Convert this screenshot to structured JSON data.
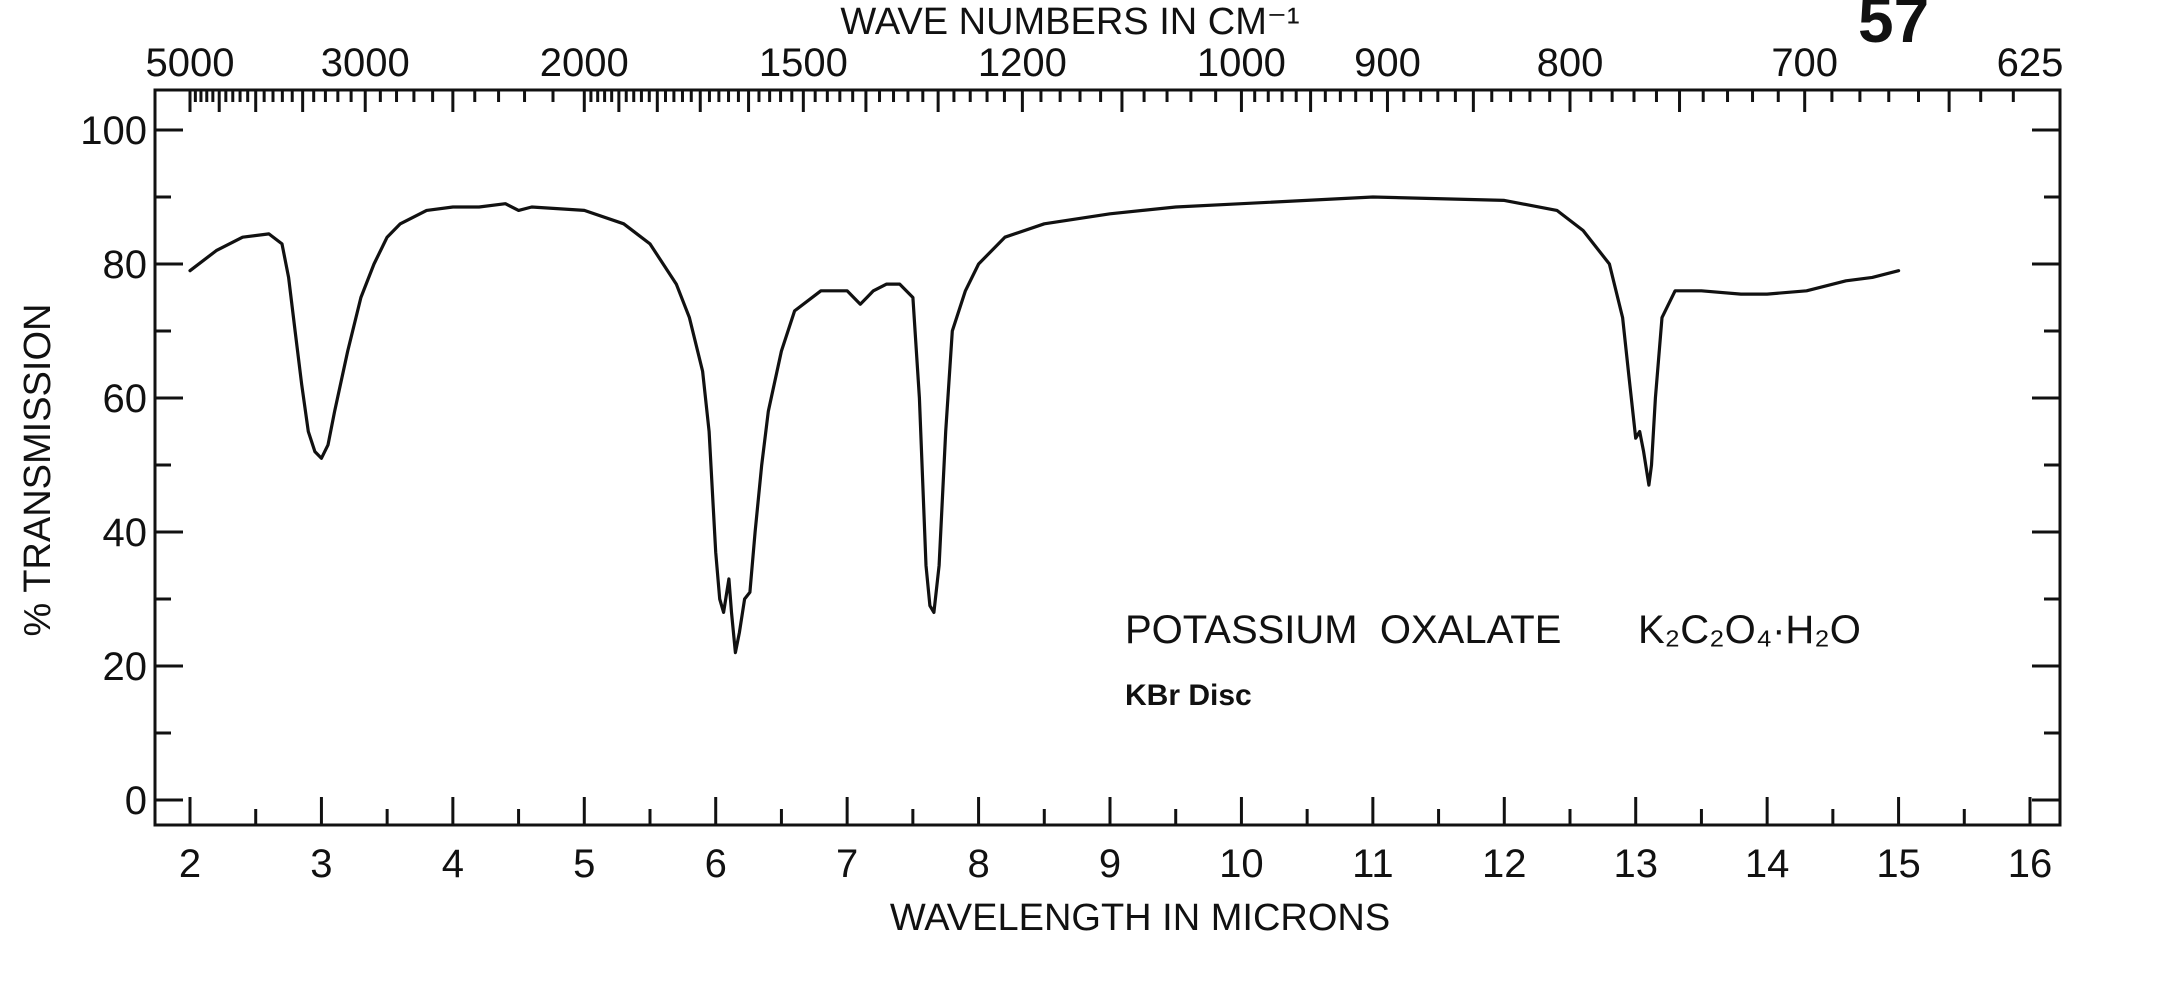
{
  "page_number": "57",
  "chart_data": {
    "type": "line",
    "title": "",
    "xlabel": "WAVELENGTH IN MICRONS",
    "ylabel": "% TRANSMISSION",
    "x2label": "WAVE NUMBERS IN CM⁻¹",
    "xlim": [
      2,
      16
    ],
    "ylim": [
      0,
      100
    ],
    "x_ticks": [
      2,
      3,
      4,
      5,
      6,
      7,
      8,
      9,
      10,
      11,
      12,
      13,
      14,
      15,
      16
    ],
    "y_ticks": [
      0,
      20,
      40,
      60,
      80,
      100
    ],
    "x2_ticks": [
      {
        "label": "5000",
        "wavenumber": 5000
      },
      {
        "label": "3000",
        "wavenumber": 3000
      },
      {
        "label": "2000",
        "wavenumber": 2000
      },
      {
        "label": "1500",
        "wavenumber": 1500
      },
      {
        "label": "1200",
        "wavenumber": 1200
      },
      {
        "label": "1000",
        "wavenumber": 1000
      },
      {
        "label": "900",
        "wavenumber": 900
      },
      {
        "label": "800",
        "wavenumber": 800
      },
      {
        "label": "700",
        "wavenumber": 700
      },
      {
        "label": "625",
        "wavenumber": 625
      }
    ],
    "grid": false,
    "annotations": {
      "compound": "POTASSIUM  OXALATE",
      "formula": "K₂C₂O₄·H₂O",
      "method": "KBr Disc"
    },
    "series": [
      {
        "x": [
          2.0,
          2.2,
          2.4,
          2.6,
          2.7,
          2.75,
          2.8,
          2.85,
          2.9,
          2.95,
          3.0,
          3.05,
          3.1,
          3.2,
          3.3,
          3.4,
          3.5,
          3.6,
          3.8,
          4.0,
          4.2,
          4.4,
          4.5,
          4.6,
          5.0,
          5.3,
          5.5,
          5.7,
          5.8,
          5.9,
          5.95,
          6.0,
          6.03,
          6.06,
          6.1,
          6.12,
          6.15,
          6.18,
          6.22,
          6.26,
          6.3,
          6.35,
          6.4,
          6.5,
          6.6,
          6.8,
          7.0,
          7.1,
          7.15,
          7.2,
          7.3,
          7.4,
          7.5,
          7.55,
          7.6,
          7.63,
          7.66,
          7.7,
          7.75,
          7.8,
          7.9,
          8.0,
          8.2,
          8.5,
          9.0,
          9.5,
          10.0,
          11.0,
          12.0,
          12.4,
          12.6,
          12.8,
          12.9,
          12.95,
          13.0,
          13.03,
          13.06,
          13.1,
          13.12,
          13.15,
          13.2,
          13.3,
          13.5,
          13.8,
          14.0,
          14.3,
          14.6,
          14.8,
          15.0
        ],
        "y": [
          79,
          82,
          84,
          84.5,
          83,
          78,
          70,
          62,
          55,
          52,
          51,
          53,
          58,
          67,
          75,
          80,
          84,
          86,
          88,
          88.5,
          88.5,
          89,
          88,
          88.5,
          88,
          86,
          83,
          77,
          72,
          64,
          55,
          37,
          30,
          28,
          33,
          28,
          22,
          25,
          30,
          31,
          40,
          50,
          58,
          67,
          73,
          76,
          76,
          74,
          75,
          76,
          77,
          77,
          75,
          60,
          35,
          29,
          28,
          35,
          55,
          70,
          76,
          80,
          84,
          86,
          87.5,
          88.5,
          89,
          90,
          89.5,
          88,
          85,
          80,
          72,
          63,
          54,
          55,
          52,
          47,
          50,
          60,
          72,
          76,
          76,
          75.5,
          75.5,
          76,
          77.5,
          78,
          79
        ]
      }
    ]
  }
}
